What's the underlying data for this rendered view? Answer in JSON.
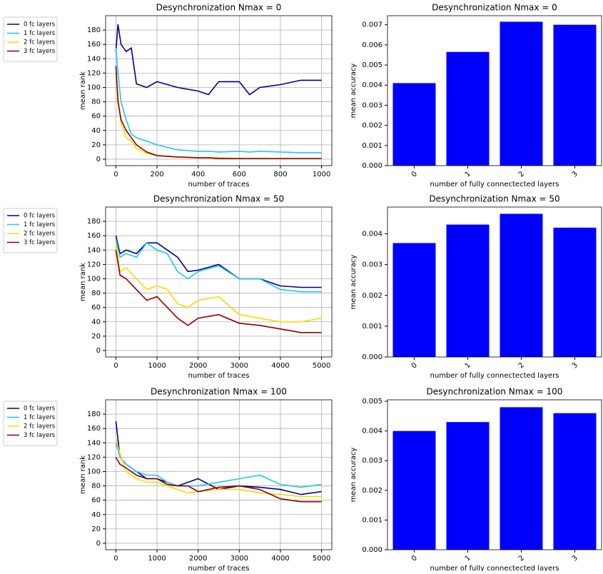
{
  "chart_data": [
    {
      "type": "line",
      "title": "Desynchronization Nmax = 0",
      "xlabel": "number of traces",
      "ylabel": "mean rank",
      "x": [
        0,
        10,
        25,
        50,
        75,
        100,
        150,
        200,
        300,
        400,
        450,
        500,
        600,
        650,
        700,
        800,
        900,
        1000
      ],
      "series": [
        {
          "name": "0 fc layers",
          "color": "#00008b",
          "values": [
            150,
            188,
            160,
            150,
            155,
            105,
            100,
            108,
            100,
            95,
            90,
            108,
            108,
            90,
            100,
            104,
            110,
            110
          ]
        },
        {
          "name": "1 fc layers",
          "color": "#1ec8f0",
          "values": [
            155,
            120,
            80,
            55,
            35,
            30,
            25,
            20,
            13,
            11,
            11,
            10,
            11,
            10,
            11,
            10,
            9,
            9
          ]
        },
        {
          "name": "2 fc layers",
          "color": "#ffd700",
          "values": [
            120,
            90,
            50,
            30,
            25,
            15,
            8,
            5,
            3,
            2,
            2,
            2,
            1,
            1,
            1,
            1,
            1,
            1
          ]
        },
        {
          "name": "3 fc layers",
          "color": "#8b0000",
          "values": [
            130,
            80,
            55,
            40,
            30,
            20,
            10,
            5,
            3,
            2,
            2,
            1,
            1,
            1,
            1,
            1,
            1,
            1
          ]
        }
      ],
      "xlim": [
        -50,
        1050
      ],
      "ylim": [
        -9,
        200
      ],
      "xticks": [
        0,
        200,
        400,
        600,
        800,
        1000
      ],
      "yticks": [
        0,
        20,
        40,
        60,
        80,
        100,
        120,
        140,
        160,
        180
      ],
      "grid": true
    },
    {
      "type": "bar",
      "title": "Desynchronization Nmax = 0",
      "xlabel": "number of fully connectected layers",
      "ylabel": "mean accuracy",
      "categories": [
        "0",
        "1",
        "2",
        "3"
      ],
      "values": [
        0.0041,
        0.00565,
        0.00715,
        0.007
      ],
      "color": "#0000ff",
      "ylim": [
        0,
        0.00745
      ],
      "yticks": [
        {
          "value": 0,
          "label": "0.000"
        },
        {
          "value": 0.001,
          "label": "0.001"
        },
        {
          "value": 0.002,
          "label": "0.002"
        },
        {
          "value": 0.003,
          "label": "0.003"
        },
        {
          "value": 0.004,
          "label": "0.004"
        },
        {
          "value": 0.005,
          "label": "0.005"
        },
        {
          "value": 0.006,
          "label": "0.006"
        },
        {
          "value": 0.007,
          "label": "0.007"
        }
      ],
      "grid": false
    },
    {
      "type": "line",
      "title": "Desynchronization Nmax = 50",
      "xlabel": "number of traces",
      "ylabel": "mean rank",
      "x": [
        0,
        100,
        250,
        500,
        750,
        1000,
        1250,
        1500,
        1750,
        2000,
        2500,
        3000,
        3500,
        4000,
        4500,
        5000
      ],
      "series": [
        {
          "name": "0 fc layers",
          "color": "#00008b",
          "values": [
            160,
            135,
            140,
            135,
            150,
            150,
            140,
            130,
            110,
            112,
            120,
            100,
            100,
            90,
            88,
            88
          ]
        },
        {
          "name": "1 fc layers",
          "color": "#1ec8f0",
          "values": [
            155,
            130,
            135,
            130,
            150,
            140,
            135,
            110,
            100,
            110,
            118,
            100,
            100,
            85,
            82,
            82
          ]
        },
        {
          "name": "2 fc layers",
          "color": "#ffd700",
          "values": [
            150,
            110,
            115,
            100,
            85,
            90,
            85,
            65,
            60,
            70,
            75,
            50,
            45,
            40,
            40,
            45
          ]
        },
        {
          "name": "3 fc layers",
          "color": "#8b0000",
          "values": [
            140,
            105,
            100,
            85,
            70,
            75,
            60,
            45,
            35,
            45,
            50,
            38,
            35,
            30,
            25,
            25
          ]
        }
      ],
      "xlim": [
        -250,
        5250
      ],
      "ylim": [
        -9,
        200
      ],
      "xticks": [
        0,
        1000,
        2000,
        3000,
        4000,
        5000
      ],
      "yticks": [
        0,
        20,
        40,
        60,
        80,
        100,
        120,
        140,
        160,
        180
      ],
      "grid": true
    },
    {
      "type": "bar",
      "title": "Desynchronization Nmax = 50",
      "xlabel": "number of fully connectected layers",
      "ylabel": "mean accuracy",
      "categories": [
        "0",
        "1",
        "2",
        "3"
      ],
      "values": [
        0.0037,
        0.0043,
        0.00465,
        0.0042
      ],
      "color": "#0000ff",
      "ylim": [
        0,
        0.00487
      ],
      "yticks": [
        {
          "value": 0,
          "label": "0.000"
        },
        {
          "value": 0.001,
          "label": "0.001"
        },
        {
          "value": 0.002,
          "label": "0.002"
        },
        {
          "value": 0.003,
          "label": "0.003"
        },
        {
          "value": 0.004,
          "label": "0.004"
        }
      ],
      "grid": false
    },
    {
      "type": "line",
      "title": "Desynchronization Nmax = 100",
      "xlabel": "number of traces",
      "ylabel": "mean rank",
      "x": [
        0,
        100,
        250,
        500,
        750,
        1000,
        1250,
        1500,
        1750,
        2000,
        2500,
        3000,
        3500,
        4000,
        4500,
        5000
      ],
      "series": [
        {
          "name": "0 fc layers",
          "color": "#00008b",
          "values": [
            170,
            120,
            110,
            100,
            90,
            90,
            85,
            80,
            85,
            90,
            75,
            80,
            78,
            75,
            68,
            72
          ]
        },
        {
          "name": "1 fc layers",
          "color": "#1ec8f0",
          "values": [
            140,
            120,
            110,
            100,
            95,
            95,
            85,
            80,
            80,
            80,
            85,
            90,
            95,
            82,
            78,
            82
          ]
        },
        {
          "name": "2 fc layers",
          "color": "#ffd700",
          "values": [
            145,
            125,
            100,
            90,
            85,
            85,
            80,
            75,
            70,
            72,
            75,
            75,
            70,
            68,
            65,
            65
          ]
        },
        {
          "name": "3 fc layers",
          "color": "#8b0000",
          "values": [
            120,
            110,
            105,
            95,
            90,
            90,
            82,
            80,
            80,
            72,
            78,
            80,
            75,
            62,
            58,
            58
          ]
        }
      ],
      "xlim": [
        -250,
        5250
      ],
      "ylim": [
        -9,
        200
      ],
      "xticks": [
        0,
        1000,
        2000,
        3000,
        4000,
        5000
      ],
      "yticks": [
        0,
        20,
        40,
        60,
        80,
        100,
        120,
        140,
        160,
        180
      ],
      "grid": true
    },
    {
      "type": "bar",
      "title": "Desynchronization Nmax = 100",
      "xlabel": "number of fully connectected layers",
      "ylabel": "mean accuracy",
      "categories": [
        "0",
        "1",
        "2",
        "3"
      ],
      "values": [
        0.004,
        0.0043,
        0.0048,
        0.0046
      ],
      "color": "#0000ff",
      "ylim": [
        0,
        0.00505
      ],
      "yticks": [
        {
          "value": 0,
          "label": "0.000"
        },
        {
          "value": 0.001,
          "label": "0.001"
        },
        {
          "value": 0.002,
          "label": "0.002"
        },
        {
          "value": 0.003,
          "label": "0.003"
        },
        {
          "value": 0.004,
          "label": "0.004"
        },
        {
          "value": 0.005,
          "label": "0.005"
        }
      ],
      "grid": false
    }
  ]
}
